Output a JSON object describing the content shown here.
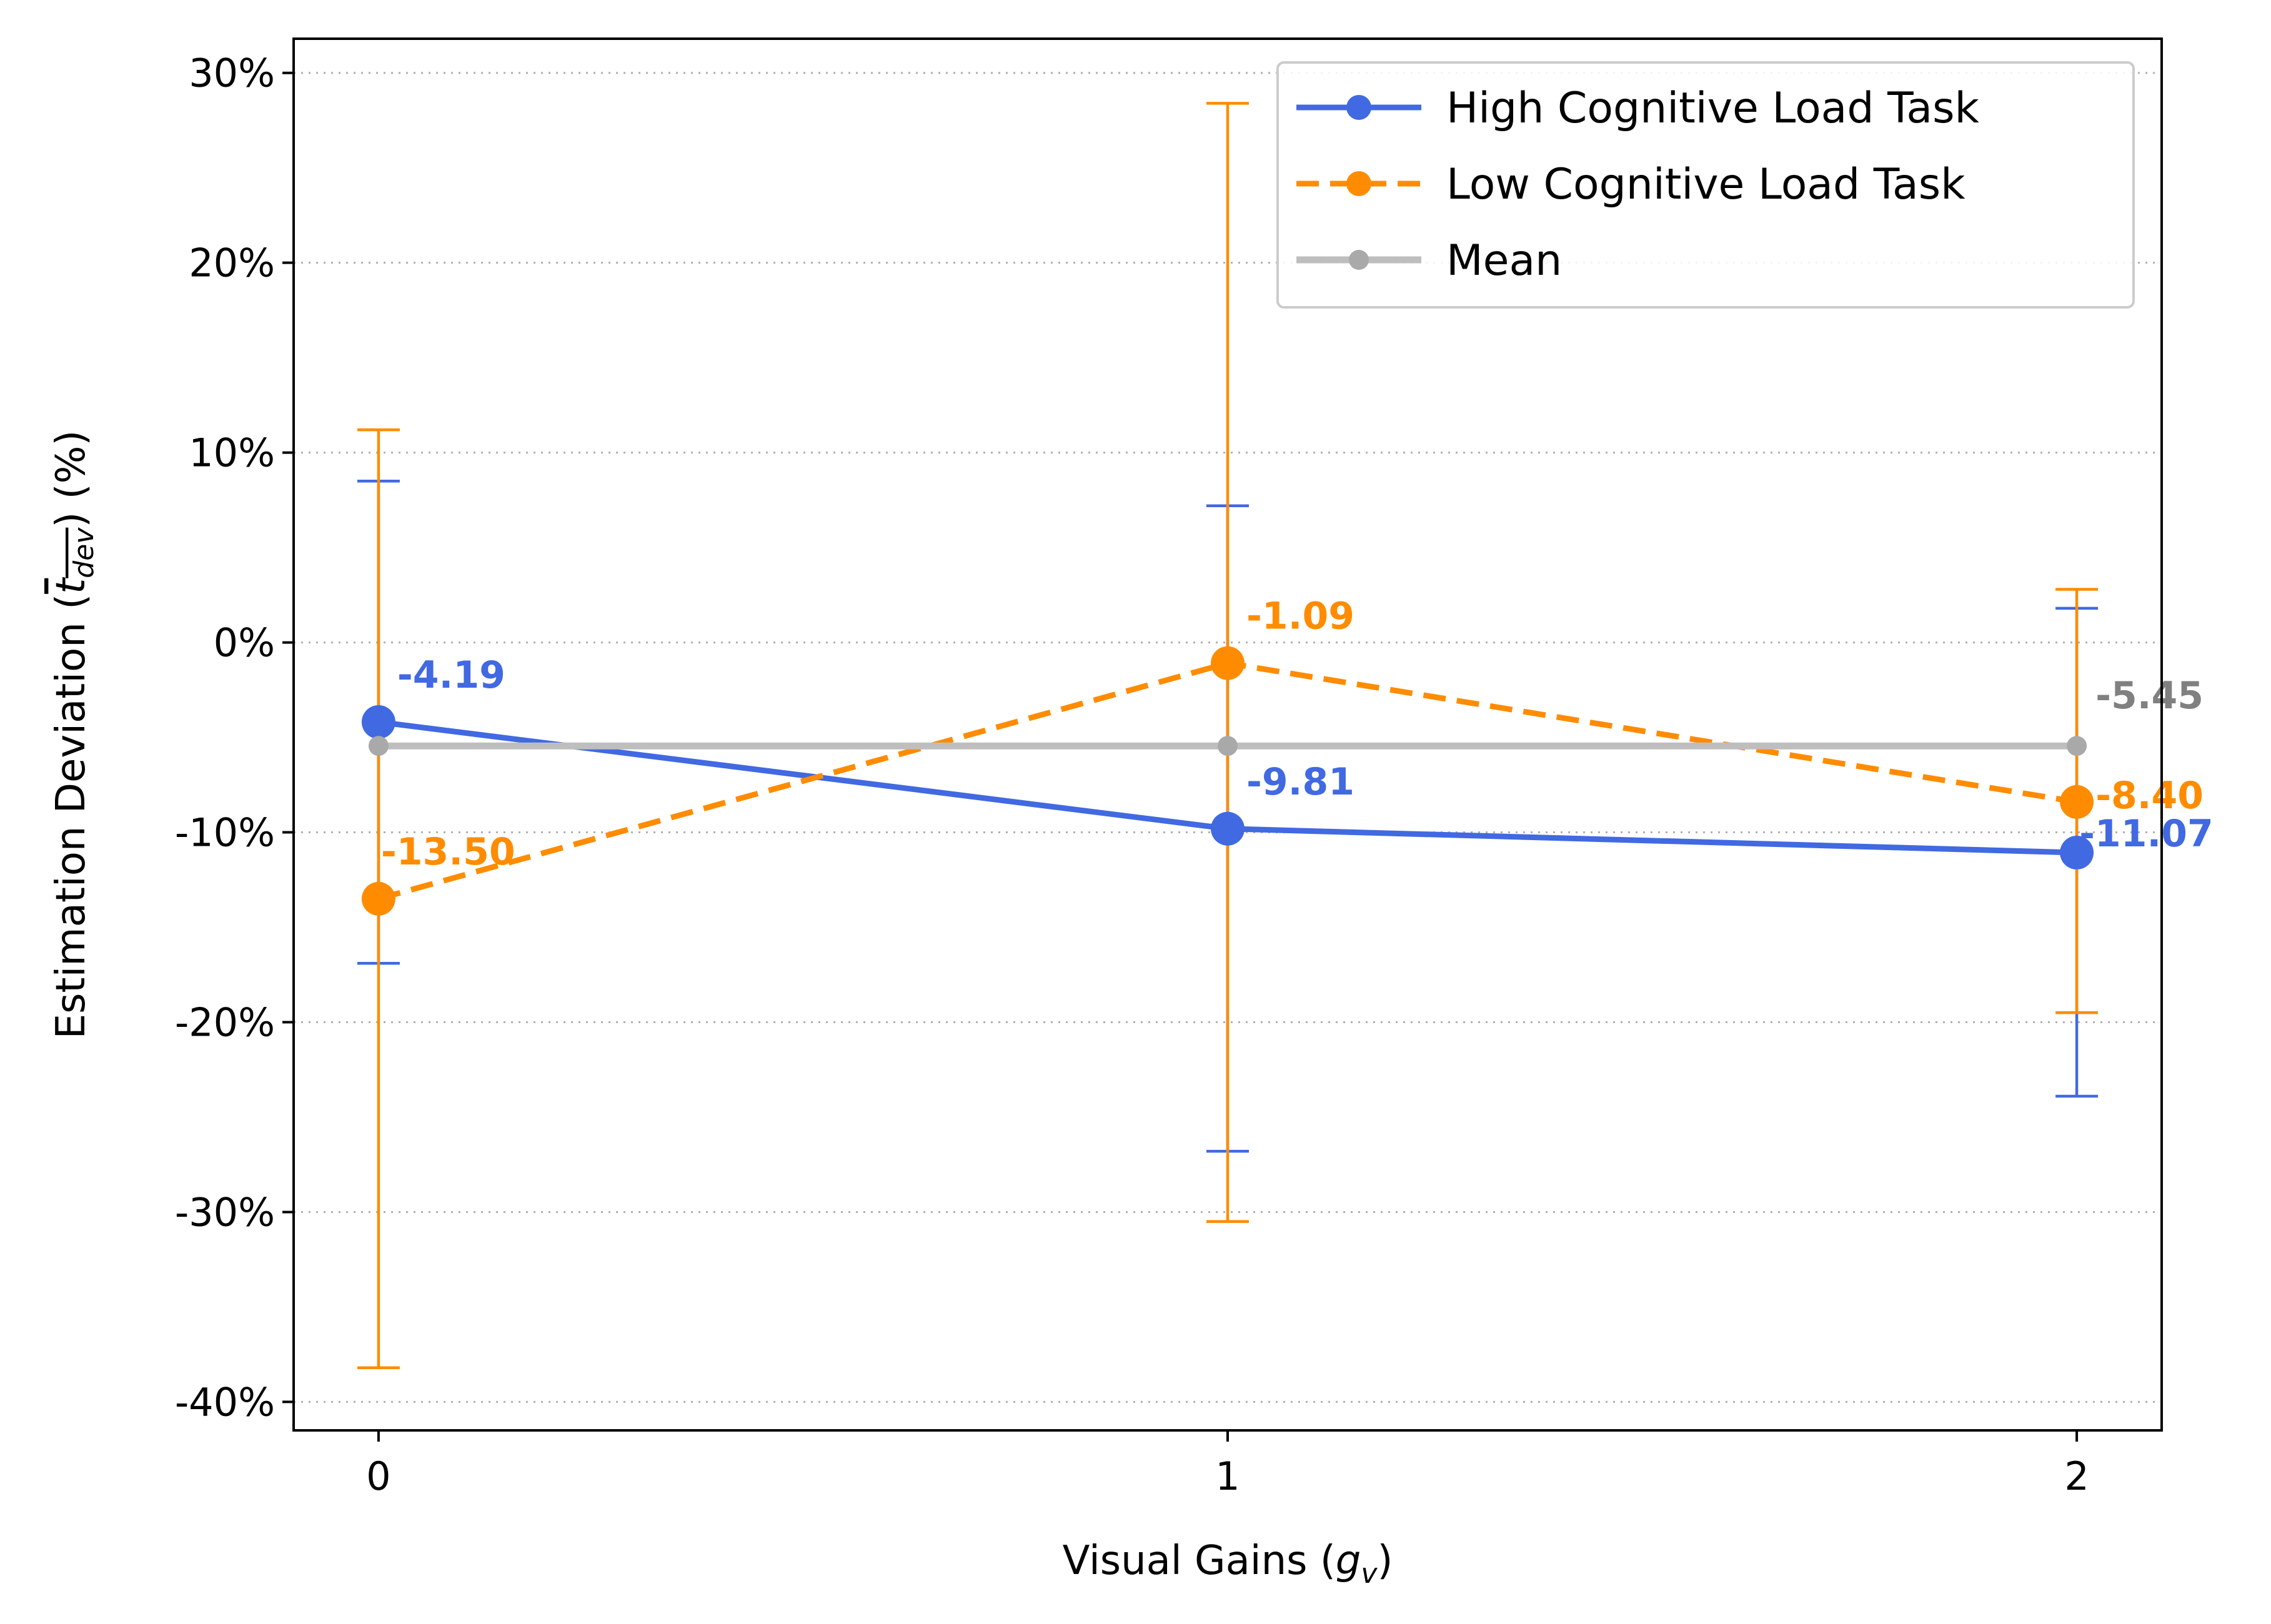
{
  "chart_data": {
    "type": "line",
    "x": [
      0,
      1,
      2
    ],
    "x_tick_labels": [
      "0",
      "1",
      "2"
    ],
    "xlim": [
      -0.1,
      2.1
    ],
    "ylim": [
      -41.5,
      31.8
    ],
    "y_ticks": [
      30,
      20,
      10,
      0,
      -10,
      -20,
      -30,
      -40
    ],
    "y_tick_labels": [
      "30%",
      "20%",
      "10%",
      "0%",
      "-10%",
      "-20%",
      "-30%",
      "-40%"
    ],
    "xlabel": {
      "main": "Visual Gains (",
      "var": "g",
      "sub": "v",
      "close": ")"
    },
    "ylabel": {
      "main": "Estimation Deviation (",
      "var": "t",
      "sub": "dev",
      "close": ") (%)"
    },
    "grid": {
      "axis": "y",
      "style": "dotted"
    },
    "legend_position": "top-right",
    "series": [
      {
        "name": "High Cognitive Load Task",
        "color": "#4169E1",
        "dash": "solid",
        "values": [
          -4.19,
          -9.81,
          -11.07
        ],
        "err_low": [
          -16.9,
          -26.8,
          -23.9
        ],
        "err_high": [
          8.5,
          7.2,
          1.8
        ],
        "labels": [
          "-4.19",
          "-9.81",
          "-11.07"
        ]
      },
      {
        "name": "Low Cognitive Load Task",
        "color": "#FF8C00",
        "dash": "dashed",
        "values": [
          -13.5,
          -1.09,
          -8.4
        ],
        "err_low": [
          -38.2,
          -30.5,
          -19.5
        ],
        "err_high": [
          11.2,
          28.4,
          2.8
        ],
        "labels": [
          "-13.50",
          "-1.09",
          "-8.40"
        ]
      },
      {
        "name": "Mean",
        "color": "#BEBEBE",
        "marker_color": "#A9A9A9",
        "dash": "solid",
        "values": [
          -5.45,
          -5.45,
          -5.45
        ],
        "labels": [
          "",
          "",
          "-5.45"
        ],
        "label_color": "#808080"
      }
    ]
  }
}
